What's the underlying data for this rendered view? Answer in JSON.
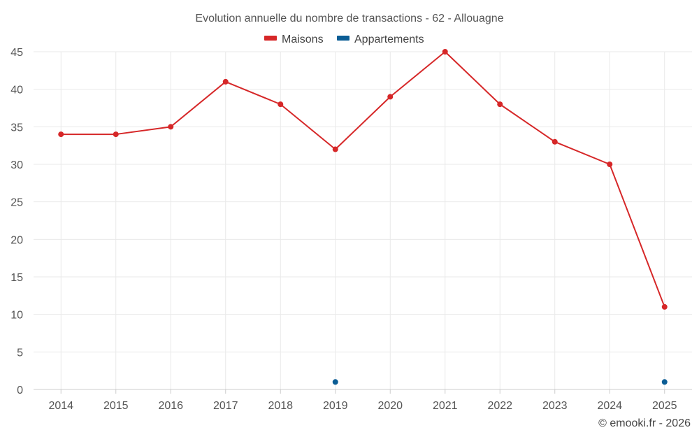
{
  "chart_data": {
    "type": "line",
    "title": "Evolution annuelle du nombre de transactions - 62 - Allouagne",
    "categories": [
      "2014",
      "2015",
      "2016",
      "2017",
      "2018",
      "2019",
      "2020",
      "2021",
      "2022",
      "2023",
      "2024",
      "2025"
    ],
    "series": [
      {
        "name": "Maisons",
        "color": "#d62728",
        "values": [
          34,
          34,
          35,
          41,
          38,
          32,
          39,
          45,
          38,
          33,
          30,
          11
        ]
      },
      {
        "name": "Appartements",
        "color": "#0b5d95",
        "values": [
          null,
          null,
          null,
          null,
          null,
          1,
          null,
          null,
          null,
          null,
          null,
          1
        ]
      }
    ],
    "y_ticks": [
      "0",
      "5",
      "10",
      "15",
      "20",
      "25",
      "30",
      "35",
      "40",
      "45"
    ],
    "ylim": [
      0,
      45
    ],
    "xlabel": "",
    "ylabel": "",
    "grid": true,
    "legend_position": "top-center"
  },
  "credit": "© emooki.fr - 2026"
}
